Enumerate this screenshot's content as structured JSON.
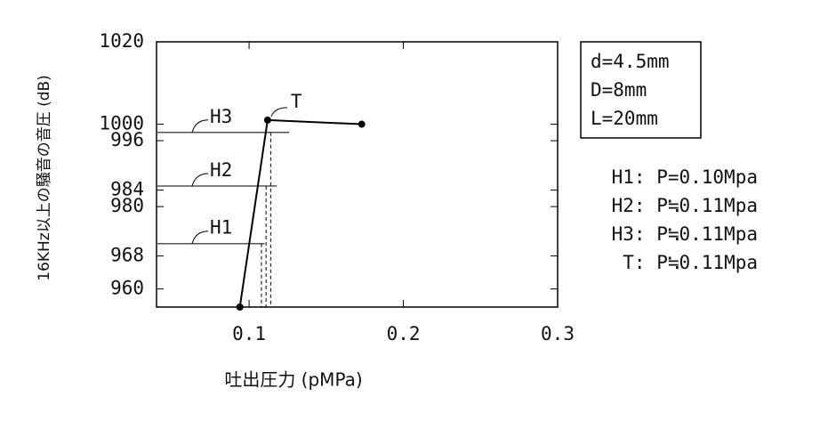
{
  "chart_data": {
    "type": "line",
    "x_label": "吐出圧力 (pMPa)",
    "y_label": "16KHz以上の騒音の音圧 (dB)",
    "xlim": [
      0.04,
      0.3
    ],
    "xticks": [
      0.1,
      0.2,
      0.3
    ],
    "ylim": [
      955.6,
      1020
    ],
    "yticks": [
      960,
      968,
      980,
      984,
      996,
      1000,
      1020
    ],
    "series": [
      {
        "name": "T",
        "color": "#000000",
        "x": [
          0.094,
          0.112,
          0.173
        ],
        "values": [
          955.6,
          1001,
          1000
        ]
      }
    ],
    "reference_lines": [
      {
        "label": "H1",
        "y": 971,
        "x_end": 0.11
      },
      {
        "label": "H2",
        "y": 985,
        "x_end": 0.118
      },
      {
        "label": "H3",
        "y": 998,
        "x_end": 0.126
      }
    ],
    "dashed_x": [
      0.108,
      0.111,
      0.114
    ],
    "parameters": [
      "d=4.5mm",
      "D=8mm",
      "L=20mm"
    ],
    "legend": [
      "H1: P=0.10Mpa",
      "H2: P≒0.11Mpa",
      "H3: P≒0.11Mpa",
      "T: P≒0.11Mpa"
    ]
  }
}
